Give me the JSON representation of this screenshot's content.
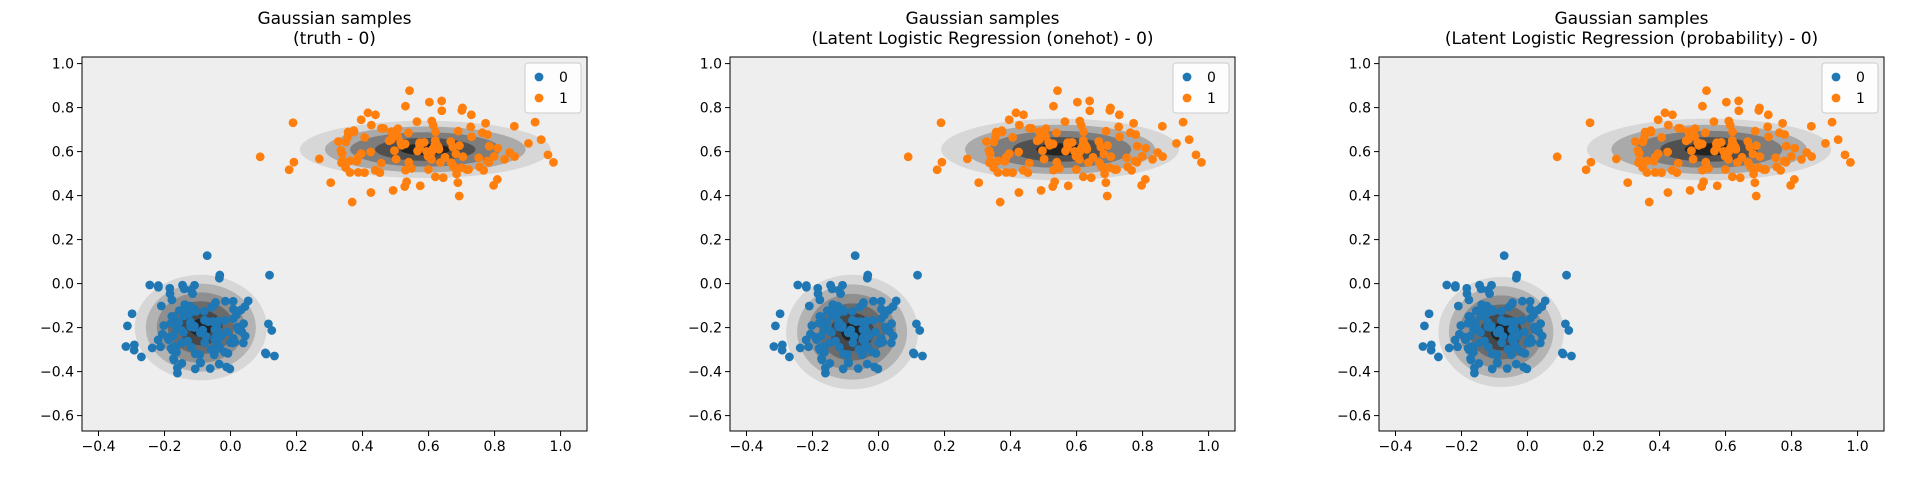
{
  "chart_data": [
    {
      "type": "scatter",
      "title_lines": [
        "Gaussian samples",
        "(truth - 0)"
      ],
      "xlim": [
        -0.45,
        1.08
      ],
      "ylim": [
        -0.67,
        1.03
      ],
      "xticks": [
        -0.4,
        -0.2,
        0.0,
        0.2,
        0.4,
        0.6,
        0.8,
        1.0
      ],
      "yticks": [
        -0.6,
        -0.4,
        -0.2,
        0.0,
        0.2,
        0.4,
        0.6,
        0.8,
        1.0
      ],
      "grid": false,
      "legend_position": "top-right",
      "background_color": "#eeeeee",
      "contours": [
        {
          "cx": -0.09,
          "cy": -0.2,
          "rx_max": 0.2,
          "ry_max": 0.24,
          "levels": 6
        },
        {
          "cx": 0.59,
          "cy": 0.61,
          "rx_max": 0.38,
          "ry_max": 0.13,
          "levels": 5
        }
      ],
      "series": [
        {
          "name": "0",
          "color": "#1f77b4",
          "center": [
            -0.09,
            -0.2
          ],
          "spread": [
            0.09,
            0.12
          ],
          "count": 130,
          "seed": 11
        },
        {
          "name": "1",
          "color": "#ff7f0e",
          "center": [
            0.55,
            0.6
          ],
          "spread": [
            0.17,
            0.09
          ],
          "count": 130,
          "seed": 23
        }
      ]
    },
    {
      "type": "scatter",
      "title_lines": [
        "Gaussian samples",
        "(Latent Logistic Regression (onehot) - 0)"
      ],
      "xlim": [
        -0.45,
        1.08
      ],
      "ylim": [
        -0.67,
        1.03
      ],
      "xticks": [
        -0.4,
        -0.2,
        0.0,
        0.2,
        0.4,
        0.6,
        0.8,
        1.0
      ],
      "yticks": [
        -0.6,
        -0.4,
        -0.2,
        0.0,
        0.2,
        0.4,
        0.6,
        0.8,
        1.0
      ],
      "grid": false,
      "legend_position": "top-right",
      "background_color": "#eeeeee",
      "contours": [
        {
          "cx": -0.08,
          "cy": -0.22,
          "rx_max": 0.2,
          "ry_max": 0.26,
          "levels": 6
        },
        {
          "cx": 0.55,
          "cy": 0.61,
          "rx_max": 0.36,
          "ry_max": 0.14,
          "levels": 5
        }
      ],
      "series": [
        {
          "name": "0",
          "color": "#1f77b4",
          "center": [
            -0.09,
            -0.2
          ],
          "spread": [
            0.09,
            0.12
          ],
          "count": 130,
          "seed": 11
        },
        {
          "name": "1",
          "color": "#ff7f0e",
          "center": [
            0.55,
            0.6
          ],
          "spread": [
            0.17,
            0.09
          ],
          "count": 130,
          "seed": 23
        }
      ]
    },
    {
      "type": "scatter",
      "title_lines": [
        "Gaussian samples",
        "(Latent Logistic Regression (probability) - 0)"
      ],
      "xlim": [
        -0.45,
        1.08
      ],
      "ylim": [
        -0.67,
        1.03
      ],
      "xticks": [
        -0.4,
        -0.2,
        0.0,
        0.2,
        0.4,
        0.6,
        0.8,
        1.0
      ],
      "yticks": [
        -0.6,
        -0.4,
        -0.2,
        0.0,
        0.2,
        0.4,
        0.6,
        0.8,
        1.0
      ],
      "grid": false,
      "legend_position": "top-right",
      "background_color": "#eeeeee",
      "contours": [
        {
          "cx": -0.08,
          "cy": -0.22,
          "rx_max": 0.19,
          "ry_max": 0.25,
          "levels": 6
        },
        {
          "cx": 0.55,
          "cy": 0.61,
          "rx_max": 0.37,
          "ry_max": 0.14,
          "levels": 5
        }
      ],
      "series": [
        {
          "name": "0",
          "color": "#1f77b4",
          "center": [
            -0.09,
            -0.2
          ],
          "spread": [
            0.09,
            0.12
          ],
          "count": 130,
          "seed": 11
        },
        {
          "name": "1",
          "color": "#ff7f0e",
          "center": [
            0.55,
            0.6
          ],
          "spread": [
            0.17,
            0.09
          ],
          "count": 130,
          "seed": 23
        }
      ]
    }
  ]
}
